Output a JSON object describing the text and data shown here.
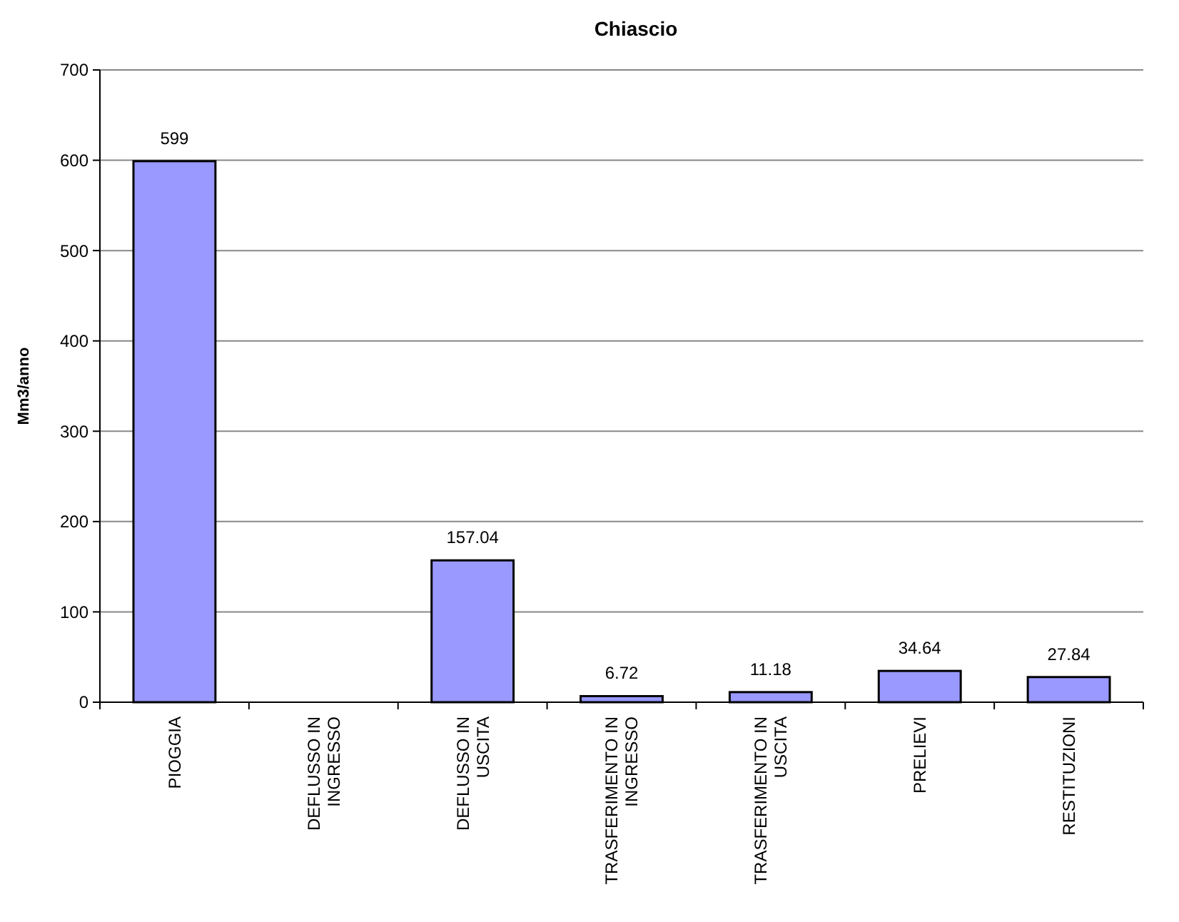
{
  "chart_data": {
    "type": "bar",
    "title": "Chiascio",
    "ylabel": "Mm3/anno",
    "categories": [
      "PIOGGIA",
      "DEFLUSSO IN INGRESSO",
      "DEFLUSSO IN USCITA",
      "TRASFERIMENTO IN INGRESSO",
      "TRASFERIMENTO IN USCITA",
      "PRELIEVI",
      "RESTITUZIONI"
    ],
    "values": [
      599,
      null,
      157.04,
      6.72,
      11.18,
      34.64,
      27.84
    ],
    "value_labels": [
      "599",
      null,
      "157.04",
      "6.72",
      "11.18",
      "34.64",
      "27.84"
    ],
    "color": "#9999ff",
    "ylim": [
      0,
      700
    ],
    "yticks": [
      0,
      100,
      200,
      300,
      400,
      500,
      600,
      700
    ],
    "grid": "y"
  }
}
